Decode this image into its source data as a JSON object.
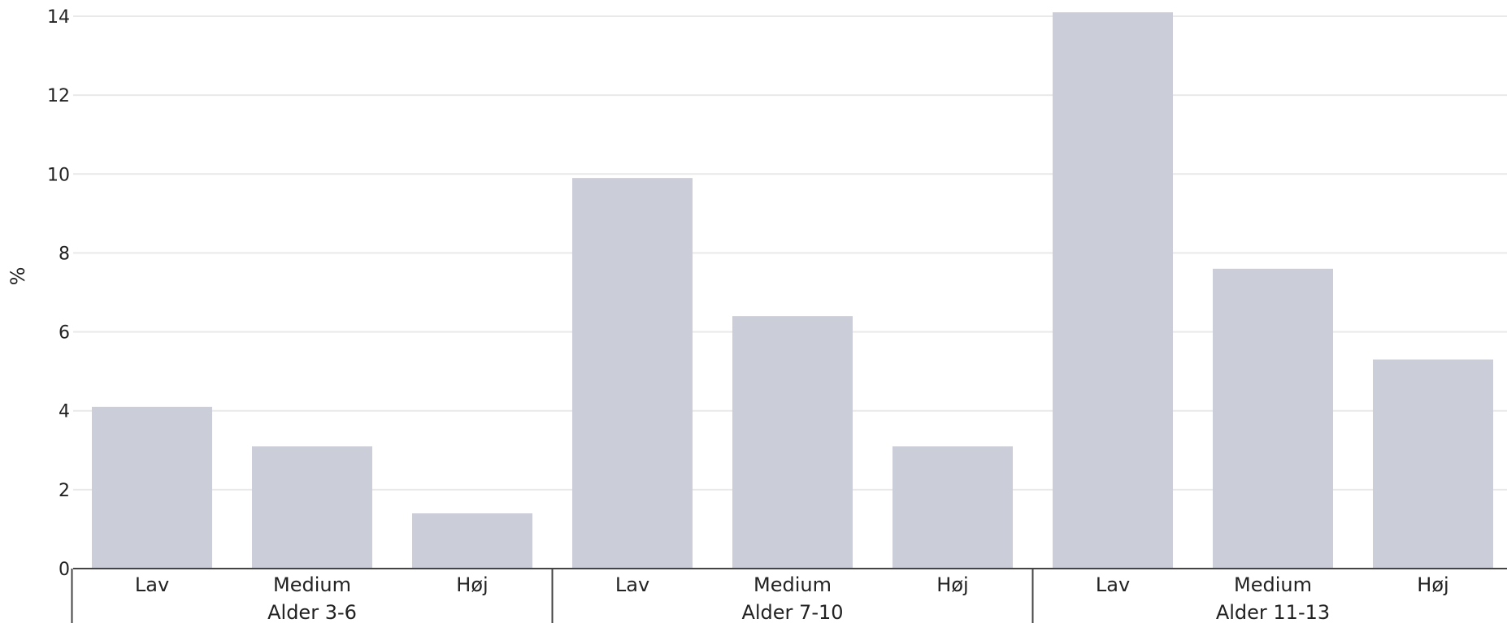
{
  "chart_data": {
    "type": "bar",
    "ylabel": "%",
    "ylim": [
      0,
      14
    ],
    "yticks": [
      0,
      2,
      4,
      6,
      8,
      10,
      12,
      14
    ],
    "grid": true,
    "bar_color": "#cbcdd8",
    "groups": [
      {
        "name": "Alder 3-6",
        "categories": [
          "Lav",
          "Medium",
          "Høj"
        ],
        "values": [
          4.1,
          3.1,
          1.4
        ]
      },
      {
        "name": "Alder 7-10",
        "categories": [
          "Lav",
          "Medium",
          "Høj"
        ],
        "values": [
          9.9,
          6.4,
          3.1
        ]
      },
      {
        "name": "Alder 11-13",
        "categories": [
          "Lav",
          "Medium",
          "Høj"
        ],
        "values": [
          14.1,
          7.6,
          5.3
        ]
      }
    ]
  }
}
